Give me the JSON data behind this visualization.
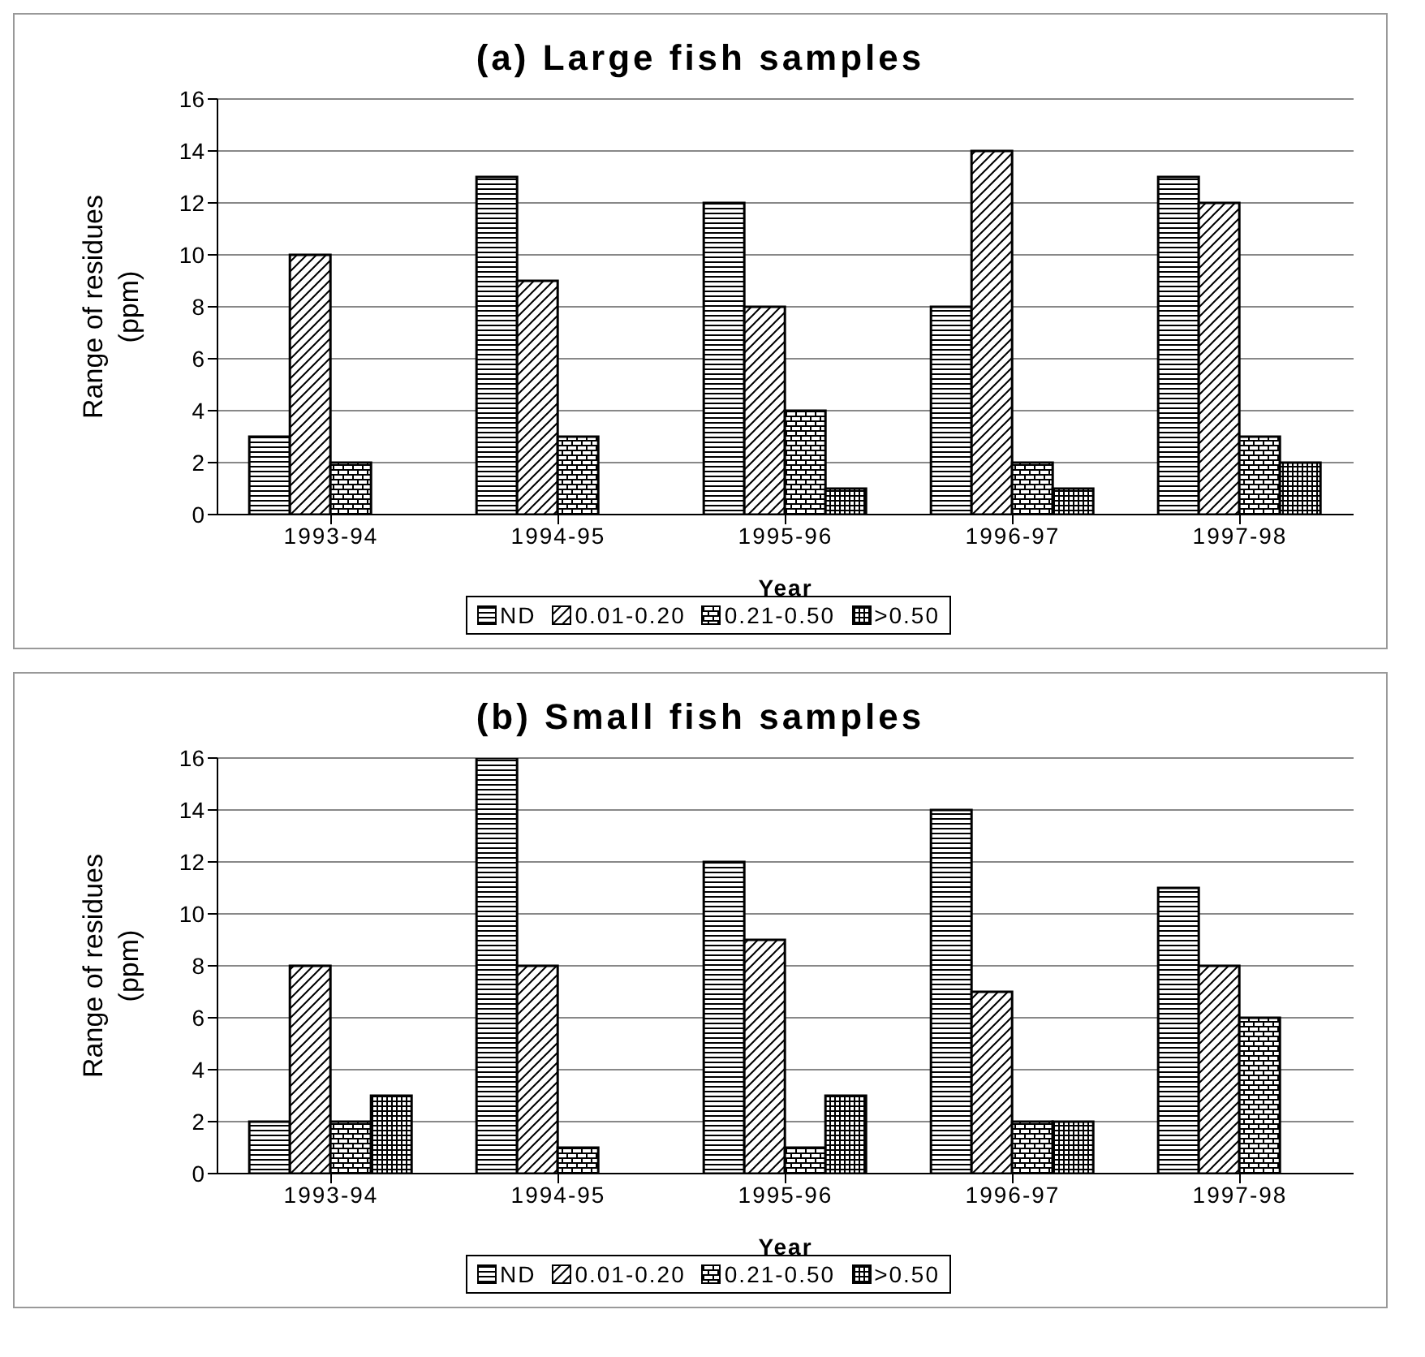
{
  "chart_data": [
    {
      "type": "bar",
      "title": "(a) Large fish samples",
      "xlabel": "Year",
      "ylabel": "Range of residues (ppm)",
      "categories": [
        "1993-94",
        "1994-95",
        "1995-96",
        "1996-97",
        "1997-98"
      ],
      "series": [
        {
          "name": "ND",
          "color": "#000000",
          "values": [
            3,
            13,
            12,
            8,
            13
          ]
        },
        {
          "name": "0.01-0.20",
          "color": "#000000",
          "values": [
            10,
            9,
            8,
            14,
            12
          ]
        },
        {
          "name": "0.21-0.50",
          "color": "#000000",
          "values": [
            2,
            3,
            4,
            2,
            3
          ]
        },
        {
          "name": ">0.50",
          "color": "#000000",
          "values": [
            0,
            0,
            1,
            1,
            2
          ]
        }
      ],
      "ylim": [
        0,
        16
      ],
      "yticks": [
        0,
        2,
        4,
        6,
        8,
        10,
        12,
        14,
        16
      ],
      "grid": "y",
      "legend": "bottom"
    },
    {
      "type": "bar",
      "title": "(b) Small fish samples",
      "xlabel": "Year",
      "ylabel": "Range of residues (ppm)",
      "categories": [
        "1993-94",
        "1994-95",
        "1995-96",
        "1996-97",
        "1997-98"
      ],
      "series": [
        {
          "name": "ND",
          "color": "#000000",
          "values": [
            2,
            16,
            12,
            14,
            11
          ]
        },
        {
          "name": "0.01-0.20",
          "color": "#000000",
          "values": [
            8,
            8,
            9,
            7,
            8
          ]
        },
        {
          "name": "0.21-0.50",
          "color": "#000000",
          "values": [
            2,
            1,
            1,
            2,
            6
          ]
        },
        {
          "name": ">0.50",
          "color": "#000000",
          "values": [
            3,
            0,
            3,
            2,
            0
          ]
        }
      ],
      "ylim": [
        0,
        16
      ],
      "yticks": [
        0,
        2,
        4,
        6,
        8,
        10,
        12,
        14,
        16
      ],
      "grid": "y",
      "legend": "bottom"
    }
  ]
}
